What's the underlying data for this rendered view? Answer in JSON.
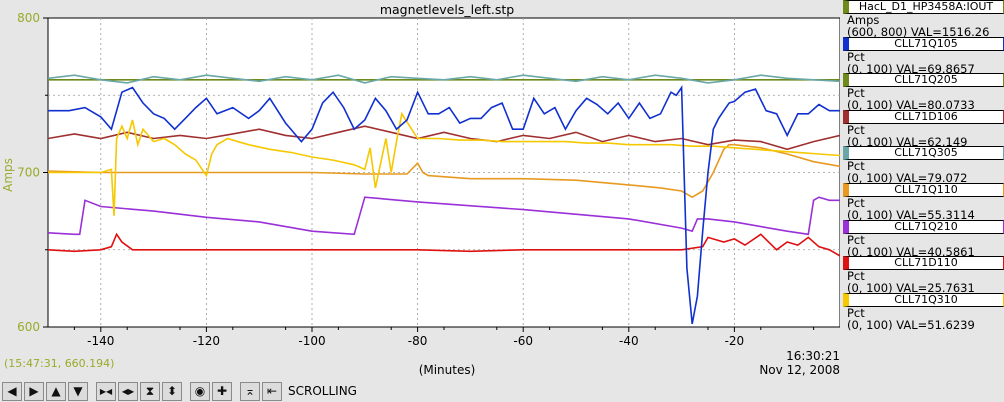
{
  "chart_data": {
    "type": "line",
    "title": "magnetlevels_left.stp",
    "xlabel": "(Minutes)",
    "ylabel": "Amps",
    "xlim": [
      -150,
      0
    ],
    "ylim": [
      600,
      800
    ],
    "x_ticks": [
      "-140",
      "-120",
      "-100",
      "-80",
      "-60",
      "-40",
      "-20"
    ],
    "y_ticks": [
      "600",
      "700",
      "800"
    ],
    "end_time": "16:30:21",
    "end_date": "Nov 12, 2008",
    "grid": true,
    "series": [
      {
        "name": "CLL71Q105",
        "color": "#1030d0",
        "x": [
          -150,
          -146,
          -143,
          -140,
          -138,
          -136,
          -134,
          -132,
          -130,
          -128,
          -126,
          -124,
          -122,
          -120,
          -118,
          -115,
          -112,
          -110,
          -108,
          -105,
          -102,
          -100,
          -98,
          -96,
          -94,
          -92,
          -90,
          -88,
          -86,
          -84,
          -82,
          -80,
          -78,
          -76,
          -74,
          -72,
          -70,
          -68,
          -66,
          -64,
          -62,
          -60,
          -58,
          -56,
          -54,
          -52,
          -50,
          -48,
          -46,
          -44,
          -42,
          -40,
          -38,
          -36,
          -34,
          -32,
          -31,
          -30,
          -29,
          -28,
          -27,
          -26,
          -25,
          -24,
          -23,
          -22,
          -21,
          -20,
          -18,
          -16,
          -14,
          -12,
          -10,
          -8,
          -6,
          -4,
          -2,
          0
        ],
        "y": [
          740,
          740,
          742,
          736,
          728,
          752,
          755,
          745,
          738,
          735,
          728,
          735,
          742,
          748,
          738,
          742,
          735,
          740,
          748,
          732,
          720,
          728,
          745,
          752,
          742,
          728,
          734,
          748,
          740,
          728,
          734,
          752,
          738,
          738,
          742,
          732,
          735,
          735,
          742,
          745,
          728,
          728,
          748,
          738,
          742,
          728,
          740,
          748,
          744,
          738,
          745,
          735,
          745,
          735,
          738,
          752,
          750,
          755,
          638,
          602,
          620,
          662,
          700,
          728,
          735,
          740,
          745,
          746,
          752,
          754,
          740,
          738,
          724,
          738,
          738,
          744,
          740,
          740
        ]
      },
      {
        "name": "CLL71Q205",
        "color": "#6e8a1a",
        "x": [
          -150,
          -120,
          -90,
          -60,
          -30,
          0
        ],
        "y": [
          760,
          760,
          760,
          760,
          760,
          760
        ]
      },
      {
        "name": "CLL71D106",
        "color": "#a03030",
        "x": [
          -150,
          -145,
          -140,
          -135,
          -130,
          -125,
          -120,
          -115,
          -110,
          -105,
          -100,
          -95,
          -90,
          -85,
          -80,
          -75,
          -70,
          -65,
          -60,
          -55,
          -50,
          -45,
          -40,
          -35,
          -30,
          -25,
          -20,
          -15,
          -10,
          -5,
          0
        ],
        "y": [
          722,
          725,
          722,
          726,
          722,
          724,
          722,
          725,
          728,
          724,
          722,
          726,
          730,
          726,
          722,
          726,
          722,
          720,
          724,
          722,
          726,
          720,
          724,
          720,
          722,
          718,
          721,
          720,
          715,
          720,
          724
        ]
      },
      {
        "name": "CLL71Q305",
        "color": "#6aa8a8",
        "x": [
          -150,
          -145,
          -140,
          -135,
          -130,
          -125,
          -120,
          -115,
          -110,
          -105,
          -100,
          -95,
          -90,
          -85,
          -80,
          -75,
          -70,
          -65,
          -60,
          -55,
          -50,
          -45,
          -40,
          -35,
          -30,
          -25,
          -20,
          -15,
          -10,
          -5,
          0
        ],
        "y": [
          761,
          763,
          760,
          758,
          762,
          760,
          763,
          761,
          759,
          762,
          760,
          763,
          758,
          762,
          761,
          760,
          762,
          760,
          763,
          761,
          759,
          762,
          760,
          763,
          761,
          758,
          760,
          763,
          761,
          760,
          759
        ]
      },
      {
        "name": "CLL71Q110",
        "color": "#e89a20",
        "x": [
          -150,
          -140,
          -130,
          -120,
          -110,
          -100,
          -90,
          -82,
          -80,
          -79,
          -78,
          -70,
          -60,
          -50,
          -40,
          -34,
          -30,
          -28,
          -26,
          -24,
          -22,
          -21,
          -20,
          -15,
          -10,
          -5,
          0
        ],
        "y": [
          701,
          700,
          700,
          700,
          700,
          700,
          699,
          699,
          706,
          700,
          698,
          696,
          696,
          695,
          692,
          690,
          688,
          684,
          688,
          700,
          715,
          718,
          718,
          716,
          712,
          707,
          704
        ]
      },
      {
        "name": "CLL71Q210",
        "color": "#9a30d8",
        "x": [
          -150,
          -145,
          -144,
          -143,
          -140,
          -130,
          -120,
          -110,
          -100,
          -92,
          -91,
          -90,
          -80,
          -60,
          -40,
          -30,
          -28,
          -27,
          -25,
          -20,
          -10,
          -6,
          -5,
          -4,
          -2,
          0
        ],
        "y": [
          661,
          660,
          660,
          682,
          678,
          675,
          671,
          668,
          662,
          660,
          672,
          684,
          681,
          676,
          670,
          664,
          662,
          670,
          670,
          668,
          662,
          660,
          682,
          684,
          682,
          682
        ]
      },
      {
        "name": "CLL71D110",
        "color": "#e01010",
        "x": [
          -150,
          -145,
          -140,
          -138,
          -137,
          -136,
          -134,
          -130,
          -120,
          -110,
          -100,
          -90,
          -80,
          -70,
          -60,
          -50,
          -40,
          -30,
          -26,
          -25,
          -22,
          -20,
          -18,
          -15,
          -12,
          -10,
          -8,
          -6,
          -4,
          -2,
          0
        ],
        "y": [
          650,
          649,
          650,
          652,
          660,
          655,
          650,
          650,
          650,
          650,
          650,
          650,
          650,
          649,
          650,
          650,
          650,
          650,
          652,
          658,
          655,
          657,
          653,
          660,
          650,
          655,
          653,
          658,
          652,
          650,
          646
        ]
      },
      {
        "name": "CLL71Q310",
        "color": "#f5c800",
        "x": [
          -150,
          -145,
          -140,
          -138,
          -137.5,
          -137,
          -136,
          -135,
          -134,
          -133,
          -132,
          -130,
          -128,
          -126,
          -124,
          -122,
          -120,
          -119,
          -118,
          -116,
          -112,
          -108,
          -104,
          -100,
          -96,
          -92,
          -90,
          -89,
          -88,
          -86,
          -85,
          -84,
          -83,
          -80,
          -76,
          -72,
          -68,
          -64,
          -60,
          -56,
          -52,
          -48,
          -44,
          -40,
          -36,
          -32,
          -28,
          -24,
          -20,
          -16,
          -12,
          -8,
          -4,
          0
        ],
        "y": [
          700,
          700,
          700,
          702,
          672,
          722,
          730,
          722,
          734,
          718,
          728,
          720,
          722,
          718,
          712,
          708,
          698,
          712,
          718,
          722,
          718,
          715,
          713,
          710,
          708,
          705,
          702,
          716,
          690,
          722,
          700,
          720,
          738,
          722,
          722,
          721,
          721,
          720,
          720,
          720,
          720,
          719,
          719,
          718,
          718,
          718,
          717,
          717,
          716,
          715,
          714,
          713,
          712,
          711
        ]
      }
    ]
  },
  "legend": [
    {
      "name": "HacL_D1_HP3458A:IOUT",
      "unit": "Amps",
      "value": "(600, 800) VAL=1516.26",
      "color": "#6e8a1a"
    },
    {
      "name": "CLL71Q105",
      "unit": "Pct",
      "value": "(0, 100) VAL=69.8657",
      "color": "#1030d0"
    },
    {
      "name": "CLL71Q205",
      "unit": "Pct",
      "value": "(0, 100) VAL=80.0733",
      "color": "#6e8a1a"
    },
    {
      "name": "CLL71D106",
      "unit": "Pct",
      "value": "(0, 100) VAL=62.149",
      "color": "#a03030"
    },
    {
      "name": "CLL71Q305",
      "unit": "Pct",
      "value": "(0, 100) VAL=79.072",
      "color": "#6aa8a8"
    },
    {
      "name": "CLL71Q110",
      "unit": "Pct",
      "value": "(0, 100) VAL=55.3114",
      "color": "#e89a20"
    },
    {
      "name": "CLL71Q210",
      "unit": "Pct",
      "value": "(0, 100) VAL=40.5861",
      "color": "#9a30d8"
    },
    {
      "name": "CLL71D110",
      "unit": "Pct",
      "value": "(0, 100) VAL=25.7631",
      "color": "#e01010"
    },
    {
      "name": "CLL71Q310",
      "unit": "Pct",
      "value": "(0, 100) VAL=51.6239",
      "color": "#f5c800"
    }
  ],
  "status": {
    "cursor": "(15:47:31, 660.194)",
    "mode": "SCROLLING"
  },
  "toolbar": [
    {
      "icon": "arrow-left-icon",
      "glyph": "◀"
    },
    {
      "icon": "arrow-right-icon",
      "glyph": "▶"
    },
    {
      "icon": "arrow-up-icon",
      "glyph": "▲"
    },
    {
      "icon": "arrow-down-icon",
      "glyph": "▼"
    },
    {
      "icon": "zoom-in-horizontal-icon",
      "glyph": "▶◀"
    },
    {
      "icon": "zoom-out-horizontal-icon",
      "glyph": "◀▶"
    },
    {
      "icon": "zoom-in-vertical-icon",
      "glyph": "⧗"
    },
    {
      "icon": "zoom-out-vertical-icon",
      "glyph": "⬍"
    },
    {
      "icon": "center-icon",
      "glyph": "◉"
    },
    {
      "icon": "plus-icon",
      "glyph": "✚"
    },
    {
      "icon": "autoscale-icon",
      "glyph": "⌅"
    },
    {
      "icon": "scroll-end-icon",
      "glyph": "⇤"
    }
  ]
}
